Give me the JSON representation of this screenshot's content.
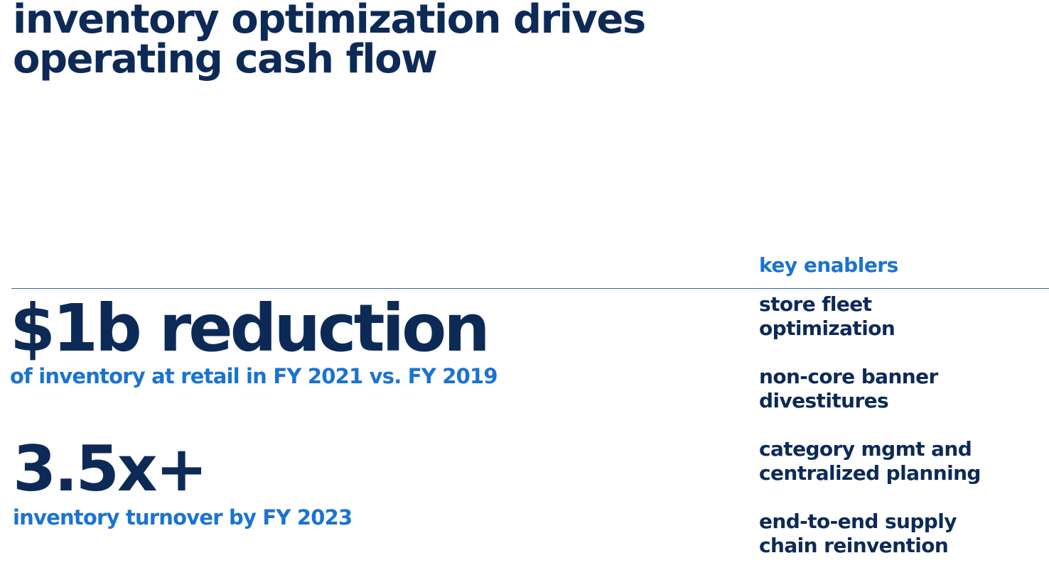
{
  "title": {
    "line1": "inventory optimization drives",
    "line2": "operating cash flow"
  },
  "enablers": {
    "heading": "key enablers",
    "items": [
      {
        "line1": "store fleet",
        "line2": "optimization"
      },
      {
        "line1": "non-core banner",
        "line2": "divestitures"
      },
      {
        "line1": "category mgmt and",
        "line2": "centralized planning"
      },
      {
        "line1": "end-to-end supply",
        "line2": "chain reinvention"
      }
    ]
  },
  "stats": [
    {
      "value": "$1b reduction",
      "caption": "of inventory at retail in FY 2021 vs. FY 2019"
    },
    {
      "value": "3.5x+",
      "caption": "inventory turnover by FY 2023"
    }
  ],
  "colors": {
    "navy": "#0d2a57",
    "accent_blue": "#1b73d0",
    "divider": "#2f6aa6"
  }
}
